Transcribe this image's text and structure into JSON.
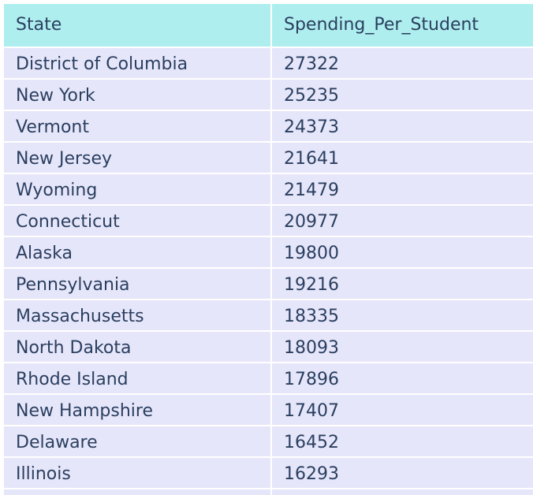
{
  "chart_data": {
    "type": "table",
    "columns": [
      "State",
      "Spending_Per_Student"
    ],
    "rows": [
      [
        "District of Columbia",
        "27322"
      ],
      [
        "New York",
        "25235"
      ],
      [
        "Vermont",
        "24373"
      ],
      [
        "New Jersey",
        "21641"
      ],
      [
        "Wyoming",
        "21479"
      ],
      [
        "Connecticut",
        "20977"
      ],
      [
        "Alaska",
        "19800"
      ],
      [
        "Pennsylvania",
        "19216"
      ],
      [
        "Massachusetts",
        "18335"
      ],
      [
        "North Dakota",
        "18093"
      ],
      [
        "Rhode Island",
        "17896"
      ],
      [
        "New Hampshire",
        "17407"
      ],
      [
        "Delaware",
        "16452"
      ],
      [
        "Illinois",
        "16293"
      ],
      [
        "",
        ""
      ]
    ],
    "colors": {
      "header_fill": "#afeeee",
      "cell_fill": "#e6e6fa",
      "text": "#2a3f5f"
    }
  }
}
